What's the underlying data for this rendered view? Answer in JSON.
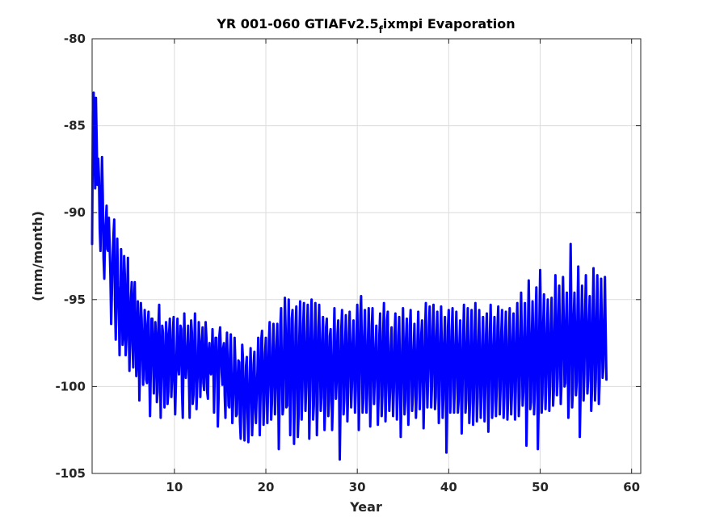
{
  "chart_data": {
    "type": "line",
    "title_main": "YR 001-060 GTIAFv2.5",
    "title_sub": "f",
    "title_end": "ixmpi Evaporation",
    "xlabel": "Year",
    "ylabel": "(mm/month)",
    "xlim": [
      1,
      61
    ],
    "ylim": [
      -105,
      -80
    ],
    "xticks": [
      10,
      20,
      30,
      40,
      50,
      60
    ],
    "yticks": [
      -105,
      -100,
      -95,
      -90,
      -85,
      -80
    ],
    "grid": true,
    "series": [
      {
        "color": "#0000ff",
        "x_start": 1,
        "x_step": 0.0833333,
        "values": [
          -91.8,
          -84.2,
          -83.1,
          -86.0,
          -88.6,
          -83.4,
          -85.9,
          -88.4,
          -86.9,
          -88.0,
          -90.9,
          -92.2,
          -89.3,
          -86.8,
          -89.0,
          -92.6,
          -93.8,
          -91.2,
          -90.5,
          -89.6,
          -92.1,
          -92.2,
          -90.3,
          -91.9,
          -93.6,
          -96.4,
          -94.5,
          -92.5,
          -91.3,
          -90.4,
          -95.0,
          -97.3,
          -95.3,
          -91.5,
          -94.2,
          -95.1,
          -98.2,
          -95.7,
          -92.1,
          -94.3,
          -97.6,
          -97.1,
          -92.5,
          -93.6,
          -98.2,
          -97.3,
          -94.8,
          -92.6,
          -96.3,
          -99.1,
          -96.8,
          -94.9,
          -94.0,
          -97.6,
          -98.9,
          -95.1,
          -94.0,
          -96.8,
          -99.4,
          -98.4,
          -95.1,
          -96.6,
          -100.8,
          -98.8,
          -95.2,
          -96.1,
          -97.9,
          -99.9,
          -98.4,
          -95.6,
          -96.7,
          -99.6,
          -99.8,
          -96.4,
          -95.7,
          -98.9,
          -101.7,
          -99.2,
          -96.1,
          -96.1,
          -98.1,
          -100.4,
          -98.1,
          -96.3,
          -97.2,
          -100.9,
          -100.3,
          -96.5,
          -95.3,
          -98.5,
          -101.8,
          -99.0,
          -96.5,
          -96.9,
          -99.4,
          -101.2,
          -98.9,
          -96.3,
          -97.1,
          -101.0,
          -100.3,
          -97.0,
          -96.1,
          -98.1,
          -100.6,
          -99.4,
          -96.8,
          -96.0,
          -99.8,
          -101.6,
          -99.8,
          -97.7,
          -96.1,
          -98.8,
          -99.3,
          -98.0,
          -96.5,
          -96.7,
          -100.3,
          -101.8,
          -98.3,
          -95.8,
          -97.9,
          -99.5,
          -98.7,
          -97.8,
          -96.5,
          -99.4,
          -101.8,
          -99.1,
          -96.2,
          -96.9,
          -101.0,
          -100.5,
          -98.1,
          -95.8,
          -97.8,
          -101.3,
          -99.9,
          -98.9,
          -96.3,
          -97.5,
          -100.6,
          -99.1,
          -97.5,
          -96.6,
          -99.8,
          -100.2,
          -98.8,
          -96.3,
          -97.2,
          -100.3,
          -100.7,
          -98.0,
          -97.5,
          -99.1,
          -99.3,
          -98.4,
          -96.7,
          -98.5,
          -101.5,
          -99.1,
          -97.2,
          -97.2,
          -98.5,
          -102.3,
          -100.6,
          -97.1,
          -96.6,
          -98.0,
          -99.2,
          -99.9,
          -97.8,
          -97.5,
          -100.5,
          -101.8,
          -98.2,
          -96.9,
          -99.0,
          -101.1,
          -101.2,
          -98.1,
          -97.0,
          -99.5,
          -102.1,
          -101.0,
          -99.5,
          -97.2,
          -98.6,
          -101.7,
          -101.6,
          -99.6,
          -98.5,
          -98.6,
          -102.0,
          -103.0,
          -99.9,
          -97.6,
          -98.4,
          -101.6,
          -103.1,
          -100.5,
          -98.8,
          -98.3,
          -101.5,
          -103.2,
          -101.2,
          -99.1,
          -97.8,
          -100.0,
          -102.8,
          -101.5,
          -98.7,
          -98.0,
          -100.9,
          -102.1,
          -100.4,
          -99.1,
          -97.2,
          -99.9,
          -102.8,
          -100.7,
          -97.3,
          -96.8,
          -99.4,
          -102.2,
          -100.8,
          -98.1,
          -97.2,
          -99.5,
          -102.1,
          -100.0,
          -97.4,
          -96.3,
          -99.3,
          -101.9,
          -100.9,
          -97.8,
          -96.4,
          -98.5,
          -101.6,
          -100.1,
          -97.7,
          -96.4,
          -99.2,
          -103.6,
          -100.7,
          -96.5,
          -95.5,
          -99.0,
          -101.6,
          -101.2,
          -97.5,
          -94.9,
          -96.7,
          -101.2,
          -101.1,
          -97.6,
          -95.0,
          -98.6,
          -102.8,
          -100.2,
          -96.1,
          -95.6,
          -99.3,
          -103.3,
          -100.7,
          -96.6,
          -95.4,
          -98.6,
          -102.9,
          -101.6,
          -97.1,
          -95.1,
          -98.1,
          -101.9,
          -100.2,
          -96.5,
          -95.2,
          -98.7,
          -101.4,
          -100.0,
          -96.9,
          -95.3,
          -98.3,
          -103.0,
          -100.5,
          -96.6,
          -95.0,
          -97.6,
          -101.9,
          -101.1,
          -97.6,
          -95.2,
          -98.5,
          -102.8,
          -100.9,
          -96.6,
          -95.3,
          -98.1,
          -101.4,
          -100.6,
          -97.3,
          -96.0,
          -98.6,
          -102.5,
          -101.1,
          -96.6,
          -96.1,
          -98.7,
          -101.7,
          -100.8,
          -97.1,
          -96.7,
          -99.2,
          -102.5,
          -100.8,
          -97.5,
          -95.5,
          -98.5,
          -100.7,
          -99.6,
          -97.0,
          -96.2,
          -99.5,
          -104.2,
          -101.2,
          -96.7,
          -95.6,
          -98.1,
          -101.6,
          -100.7,
          -97.7,
          -95.9,
          -98.4,
          -102.0,
          -100.3,
          -97.0,
          -95.7,
          -98.0,
          -101.2,
          -99.9,
          -97.5,
          -96.2,
          -98.8,
          -101.5,
          -100.2,
          -97.1,
          -95.3,
          -98.3,
          -102.5,
          -100.1,
          -95.9,
          -94.8,
          -97.6,
          -101.5,
          -100.7,
          -97.2,
          -95.6,
          -98.4,
          -101.5,
          -100.4,
          -97.3,
          -95.5,
          -98.5,
          -102.3,
          -100.5,
          -96.5,
          -95.5,
          -98.7,
          -101.0,
          -99.4,
          -97.6,
          -96.5,
          -99.3,
          -102.2,
          -100.5,
          -97.0,
          -95.8,
          -98.2,
          -101.7,
          -100.5,
          -96.9,
          -95.2,
          -98.7,
          -102.0,
          -100.2,
          -96.2,
          -95.7,
          -99.1,
          -101.4,
          -100.3,
          -97.7,
          -96.6,
          -99.4,
          -101.7,
          -100.2,
          -97.0,
          -95.8,
          -98.6,
          -101.9,
          -100.4,
          -97.1,
          -96.0,
          -99.1,
          -102.9,
          -100.8,
          -97.6,
          -95.5,
          -98.0,
          -101.6,
          -100.8,
          -97.2,
          -96.1,
          -99.0,
          -102.2,
          -100.3,
          -96.5,
          -95.6,
          -98.5,
          -101.4,
          -100.5,
          -97.9,
          -96.4,
          -98.8,
          -101.8,
          -100.3,
          -97.4,
          -95.7,
          -98.2,
          -101.3,
          -99.7,
          -97.0,
          -96.2,
          -99.2,
          -102.4,
          -100.1,
          -96.7,
          -95.2,
          -98.9,
          -101.2,
          -99.3,
          -96.6,
          -95.4,
          -98.0,
          -101.2,
          -100.0,
          -96.7,
          -95.3,
          -97.8,
          -101.3,
          -100.6,
          -97.1,
          -95.7,
          -98.2,
          -102.1,
          -100.5,
          -97.2,
          -95.4,
          -97.8,
          -101.8,
          -100.7,
          -97.6,
          -96.0,
          -98.6,
          -103.8,
          -101.3,
          -96.6,
          -95.6,
          -98.4,
          -101.5,
          -100.2,
          -96.8,
          -95.5,
          -98.1,
          -101.5,
          -100.1,
          -97.6,
          -95.7,
          -97.9,
          -101.5,
          -100.8,
          -97.6,
          -96.2,
          -99.0,
          -102.7,
          -100.5,
          -97.1,
          -95.3,
          -97.8,
          -101.5,
          -100.8,
          -97.6,
          -95.5,
          -98.3,
          -102.1,
          -100.9,
          -97.5,
          -95.6,
          -98.5,
          -102.2,
          -100.7,
          -97.0,
          -95.2,
          -98.3,
          -102.0,
          -100.6,
          -97.4,
          -95.6,
          -98.5,
          -101.8,
          -100.5,
          -97.6,
          -96.0,
          -98.6,
          -102.0,
          -100.2,
          -97.0,
          -95.8,
          -98.7,
          -102.6,
          -100.4,
          -96.9,
          -95.3,
          -98.0,
          -101.8,
          -100.8,
          -97.7,
          -96.0,
          -98.6,
          -101.7,
          -100.1,
          -96.6,
          -95.4,
          -98.2,
          -101.6,
          -100.2,
          -96.9,
          -95.6,
          -98.3,
          -101.8,
          -100.6,
          -97.2,
          -95.7,
          -98.4,
          -101.9,
          -100.7,
          -97.3,
          -95.5,
          -98.1,
          -101.6,
          -100.3,
          -97.2,
          -95.8,
          -98.5,
          -101.9,
          -100.2,
          -96.9,
          -95.2,
          -97.9,
          -101.7,
          -100.6,
          -97.0,
          -94.6,
          -97.4,
          -101.1,
          -100.3,
          -97.4,
          -95.2,
          -98.0,
          -103.4,
          -101.0,
          -96.6,
          -93.9,
          -97.0,
          -101.3,
          -100.9,
          -97.3,
          -95.1,
          -97.5,
          -101.6,
          -100.2,
          -96.2,
          -94.3,
          -97.9,
          -103.6,
          -101.2,
          -96.2,
          -93.3,
          -96.6,
          -101.5,
          -100.4,
          -96.5,
          -94.7,
          -97.8,
          -101.3,
          -99.9,
          -96.7,
          -95.0,
          -97.9,
          -101.4,
          -99.9,
          -96.4,
          -94.9,
          -97.5,
          -101.1,
          -100.2,
          -96.6,
          -93.6,
          -96.8,
          -100.5,
          -99.5,
          -95.9,
          -94.2,
          -97.5,
          -101.0,
          -99.9,
          -96.0,
          -93.7,
          -96.4,
          -100.0,
          -99.8,
          -96.4,
          -94.6,
          -97.7,
          -101.8,
          -100.3,
          -95.6,
          -91.8,
          -95.9,
          -101.2,
          -100.1,
          -96.1,
          -94.6,
          -97.1,
          -100.5,
          -99.7,
          -95.7,
          -93.1,
          -96.7,
          -102.9,
          -100.6,
          -96.4,
          -94.2,
          -96.9,
          -100.8,
          -99.3,
          -95.8,
          -93.6,
          -96.4,
          -100.4,
          -99.6,
          -96.5,
          -94.8,
          -97.1,
          -101.4,
          -100.2,
          -95.7,
          -93.2,
          -96.4,
          -100.8,
          -99.6,
          -96.3,
          -93.6,
          -96.6,
          -101.0,
          -99.8,
          -96.4,
          -93.8,
          -96.7,
          -99.5,
          -98.9,
          -96.2,
          -93.7,
          -96.9,
          -99.6
        ]
      }
    ]
  }
}
